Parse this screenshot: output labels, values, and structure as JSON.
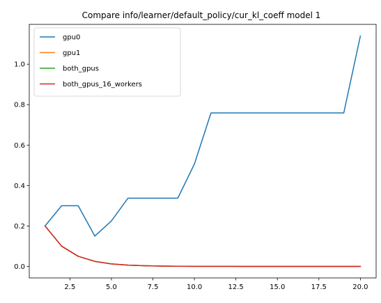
{
  "chart_data": {
    "type": "line",
    "title": "Compare info/learner/default_policy/cur_kl_coeff model 1",
    "xlabel": "",
    "ylabel": "",
    "xlim": [
      0.05,
      20.95
    ],
    "ylim": [
      -0.057,
      1.197
    ],
    "xticks": [
      2.5,
      5.0,
      7.5,
      10.0,
      12.5,
      15.0,
      17.5,
      20.0
    ],
    "xtick_labels": [
      "2.5",
      "5.0",
      "7.5",
      "10.0",
      "12.5",
      "15.0",
      "17.5",
      "20.0"
    ],
    "yticks": [
      0.0,
      0.2,
      0.4,
      0.6,
      0.8,
      1.0
    ],
    "ytick_labels": [
      "0.0",
      "0.2",
      "0.4",
      "0.6",
      "0.8",
      "1.0"
    ],
    "grid": false,
    "legend_position": "top-left",
    "x": [
      1,
      2,
      3,
      4,
      5,
      6,
      7,
      8,
      9,
      10,
      11,
      12,
      13,
      14,
      15,
      16,
      17,
      18,
      19,
      20
    ],
    "series": [
      {
        "name": "gpu0",
        "color": "#1f77b4",
        "values": [
          0.2,
          0.3,
          0.3,
          0.15,
          0.225,
          0.3375,
          0.3375,
          0.3375,
          0.3375,
          0.50625,
          0.759,
          0.759,
          0.759,
          0.759,
          0.759,
          0.759,
          0.759,
          0.759,
          0.759,
          1.139
        ]
      },
      {
        "name": "gpu1",
        "color": "#ff7f0e",
        "values": [
          0.2,
          0.1,
          0.05,
          0.025,
          0.0125,
          0.00625,
          0.003125,
          0.0015625,
          0.00078,
          0.00039,
          0.0002,
          0.0001,
          5e-05,
          2.4e-05,
          1.2e-05,
          6e-06,
          3e-06,
          1.5e-06,
          8e-07,
          4e-07
        ]
      },
      {
        "name": "both_gpus",
        "color": "#2ca02c",
        "values": [
          0.2,
          0.1,
          0.05,
          0.025,
          0.0125,
          0.00625,
          0.003125,
          0.0015625,
          0.00078,
          0.00039,
          0.0002,
          0.0001,
          5e-05,
          2.4e-05,
          1.2e-05,
          6e-06,
          3e-06,
          1.5e-06,
          8e-07,
          4e-07
        ]
      },
      {
        "name": "both_gpus_16_workers",
        "color": "#d62728",
        "values": [
          0.2,
          0.1,
          0.05,
          0.025,
          0.0125,
          0.00625,
          0.003125,
          0.0015625,
          0.00078,
          0.00039,
          0.0002,
          0.0001,
          5e-05,
          2.4e-05,
          1.2e-05,
          6e-06,
          3e-06,
          1.5e-06,
          8e-07,
          4e-07
        ]
      }
    ]
  }
}
